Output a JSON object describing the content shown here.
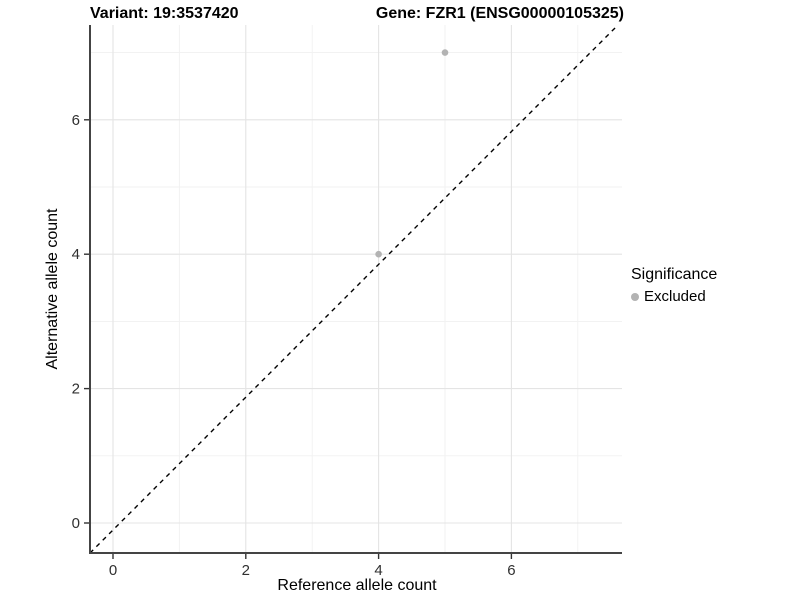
{
  "titles": {
    "variant": "Variant: 19:3537420",
    "gene": "Gene: FZR1 (ENSG00000105325)"
  },
  "chart_data": {
    "type": "scatter",
    "xlabel": "Reference allele count",
    "ylabel": "Alternative allele count",
    "x_ticks": [
      0,
      2,
      4,
      6
    ],
    "y_ticks": [
      0,
      2,
      4,
      6
    ],
    "x_minor_gridlines": [
      1,
      3,
      5,
      7
    ],
    "y_minor_gridlines": [
      1,
      3,
      5,
      7
    ],
    "xlim": [
      -0.4,
      7.6
    ],
    "ylim": [
      -0.45,
      7.4
    ],
    "grid": true,
    "identity_line": {
      "style": "dashed",
      "color": "#000000",
      "slope": 1,
      "intercept": 0
    },
    "series": [
      {
        "name": "Excluded",
        "color": "#b3b3b3",
        "points": [
          {
            "x": 5,
            "y": 7
          },
          {
            "x": 4,
            "y": 4
          }
        ]
      }
    ],
    "legend": {
      "title": "Significance",
      "position": "right",
      "items": [
        {
          "label": "Excluded",
          "color": "#b3b3b3"
        }
      ]
    },
    "colors": {
      "major_grid": "#e4e4e4",
      "minor_grid": "#f1f1f1",
      "axis_line": "#444444",
      "tick": "#333333",
      "tick_label": "#303030"
    }
  }
}
